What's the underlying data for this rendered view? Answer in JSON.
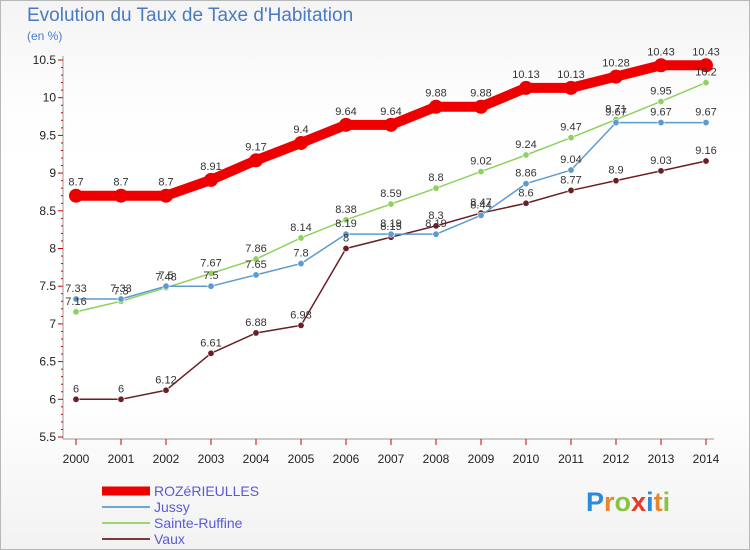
{
  "header": {
    "title": "Evolution du Taux de Taxe d'Habitation",
    "unit": "(en %)"
  },
  "brand": {
    "letters": [
      "P",
      "r",
      "o",
      "x",
      "i",
      "t",
      "i"
    ],
    "colors": [
      "#2d8ad6",
      "#e8882a",
      "#8ac43d",
      "#e43b2b",
      "#2d8ad6",
      "#e8882a",
      "#8ac43d"
    ]
  },
  "chart_data": {
    "type": "line",
    "title": "Evolution du Taux de Taxe d'Habitation",
    "subtitle": "(en %)",
    "xlabel": "",
    "ylabel": "",
    "x": [
      "2000",
      "2001",
      "2002",
      "2003",
      "2004",
      "2005",
      "2006",
      "2007",
      "2008",
      "2009",
      "2010",
      "2011",
      "2012",
      "2013",
      "2014"
    ],
    "yticks": [
      "5.5",
      "6",
      "6.5",
      "7",
      "7.5",
      "8",
      "8.5",
      "9",
      "9.5",
      "10",
      "10.5"
    ],
    "ylim": [
      5.5,
      10.5
    ],
    "grid": false,
    "legend_position": "bottom-left",
    "series": [
      {
        "name": "ROZéRIEULLES",
        "color": "#ee0000",
        "values": [
          8.7,
          8.7,
          8.7,
          8.91,
          9.17,
          9.4,
          9.64,
          9.64,
          9.88,
          9.88,
          10.13,
          10.13,
          10.28,
          10.43,
          10.43
        ],
        "labels": [
          "8.7",
          "8.7",
          "8.7",
          "8.91",
          "9.17",
          "9.4",
          "9.64",
          "9.64",
          "9.88",
          "9.88",
          "10.13",
          "10.13",
          "10.28",
          "10.43",
          "10.43"
        ]
      },
      {
        "name": "Jussy",
        "color": "#5b9bd0",
        "values": [
          7.33,
          7.33,
          7.5,
          7.5,
          7.65,
          7.8,
          8.19,
          8.19,
          8.19,
          8.44,
          8.86,
          9.04,
          9.67,
          9.67,
          9.67
        ],
        "labels": [
          "7.33",
          "7.33",
          "7.5",
          "7.5",
          "7.65",
          "7.8",
          "8.19",
          "8.19",
          "8.19",
          "8.44",
          "8.86",
          "9.04",
          "9.67",
          "9.67",
          "9.67"
        ]
      },
      {
        "name": "Sainte-Ruffine",
        "color": "#8fd15f",
        "values": [
          7.16,
          7.3,
          7.48,
          7.67,
          7.86,
          8.14,
          8.38,
          8.59,
          8.8,
          9.02,
          9.24,
          9.47,
          9.71,
          9.95,
          10.2
        ],
        "labels": [
          "7.16",
          "7.3",
          "7.48",
          "7.67",
          "7.86",
          "8.14",
          "8.38",
          "8.59",
          "8.8",
          "9.02",
          "9.24",
          "9.47",
          "9.71",
          "9.95",
          "10.2"
        ]
      },
      {
        "name": "Vaux",
        "color": "#6b1f24",
        "values": [
          6,
          6,
          6.12,
          6.61,
          6.88,
          6.98,
          8,
          8.15,
          8.3,
          8.47,
          8.6,
          8.77,
          8.9,
          9.03,
          9.16
        ],
        "labels": [
          "6",
          "6",
          "6.12",
          "6.61",
          "6.88",
          "6.98",
          "8",
          "8.15",
          "8.3",
          "8.47",
          "8.6",
          "8.77",
          "8.9",
          "9.03",
          "9.16"
        ]
      }
    ]
  }
}
